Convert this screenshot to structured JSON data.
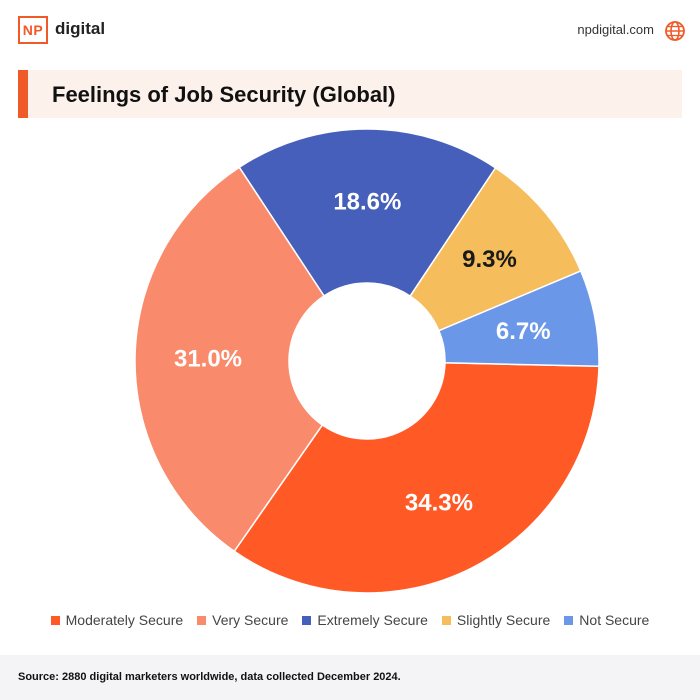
{
  "header": {
    "logo_mark": "NP",
    "logo_text": "digital",
    "site_url": "npdigital.com",
    "globe_icon": "globe-icon",
    "accent_color": "#f05a28"
  },
  "title": "Feelings of Job Security (Global)",
  "chart_data": {
    "type": "pie",
    "donut": true,
    "title": "Feelings of Job Security (Global)",
    "slices": [
      {
        "label": "Moderately Secure",
        "value": 34.3,
        "display": "34.3%",
        "color": "#ff5a26",
        "text_color": "#ffffff"
      },
      {
        "label": "Very Secure",
        "value": 31.0,
        "display": "31.0%",
        "color": "#f98a6b",
        "text_color": "#ffffff"
      },
      {
        "label": "Extremely Secure",
        "value": 18.6,
        "display": "18.6%",
        "color": "#455fba",
        "text_color": "#ffffff"
      },
      {
        "label": "Slightly Secure",
        "value": 9.3,
        "display": "9.3%",
        "color": "#f5bd5b",
        "text_color": "#1a1a1a"
      },
      {
        "label": "Not Secure",
        "value": 6.7,
        "display": "6.7%",
        "color": "#6a97e8",
        "text_color": "#ffffff"
      }
    ],
    "legend_position": "bottom"
  },
  "footer": {
    "source": "Source: 2880 digital marketers worldwide, data collected December 2024."
  }
}
